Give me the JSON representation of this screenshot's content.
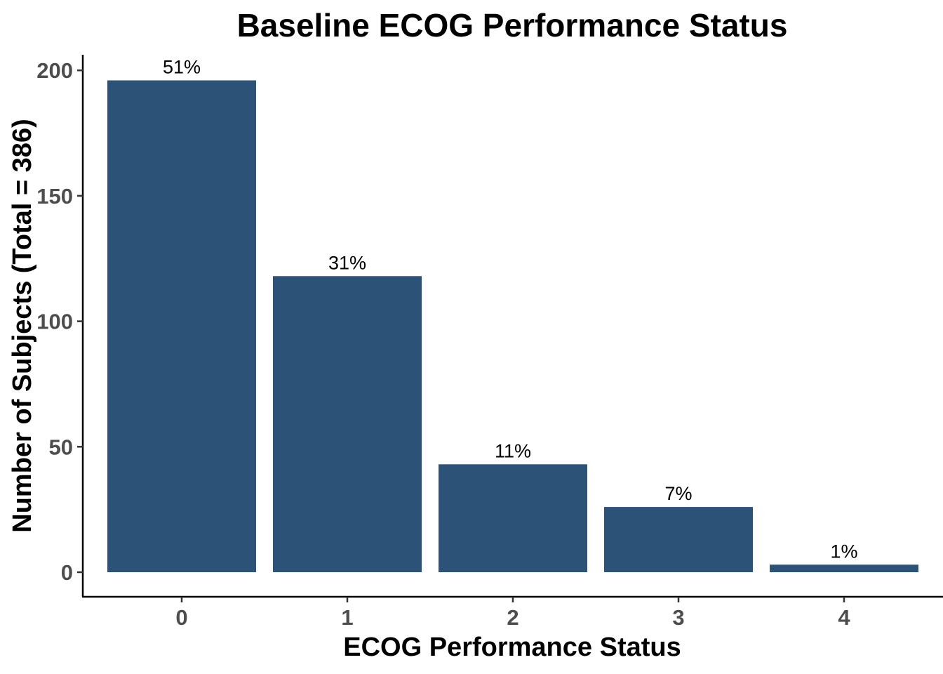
{
  "chart_data": {
    "type": "bar",
    "title": "Baseline ECOG Performance Status",
    "xlabel": "ECOG Performance Status",
    "ylabel": "Number of Subjects (Total = 386)",
    "categories": [
      "0",
      "1",
      "2",
      "3",
      "4"
    ],
    "values": [
      196,
      118,
      43,
      26,
      3
    ],
    "data_labels": [
      "51%",
      "31%",
      "11%",
      "7%",
      "1%"
    ],
    "yticks": [
      "0",
      "50",
      "100",
      "150",
      "200"
    ],
    "ylim": [
      0,
      206
    ],
    "grid": false,
    "legend": "none",
    "bar_color": "#2c5278"
  }
}
